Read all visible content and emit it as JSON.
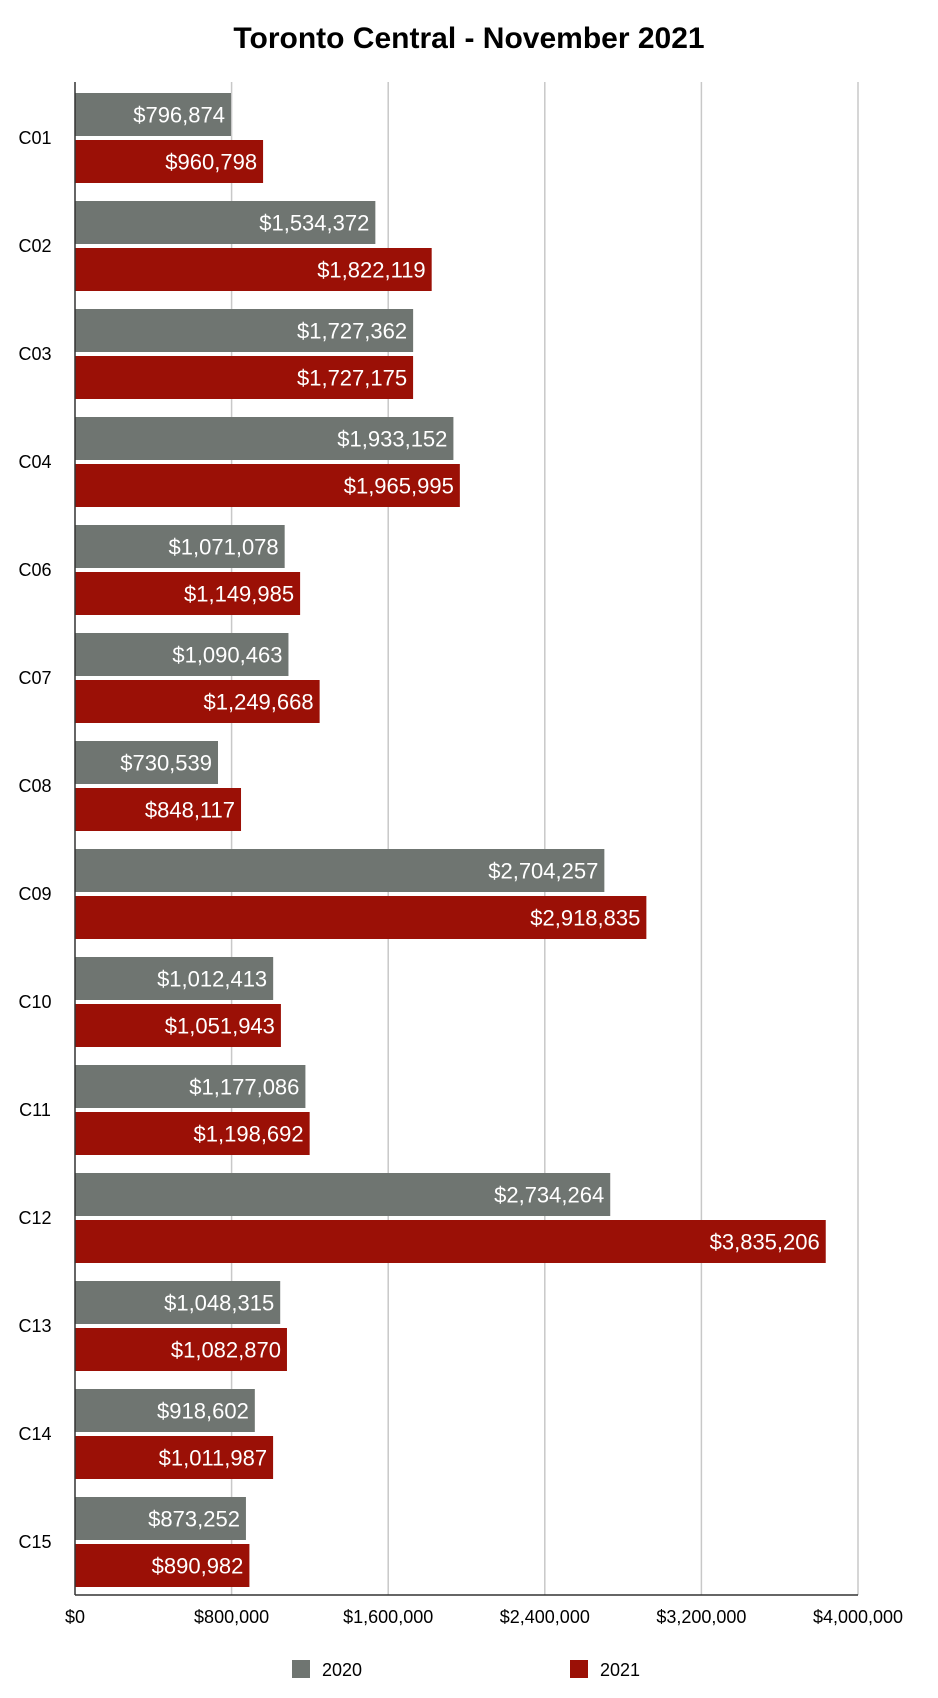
{
  "chart_data": {
    "type": "bar",
    "orientation": "horizontal",
    "title": "Toronto Central - November 2021",
    "categories": [
      "C01",
      "C02",
      "C03",
      "C04",
      "C06",
      "C07",
      "C08",
      "C09",
      "C10",
      "C11",
      "C12",
      "C13",
      "C14",
      "C15"
    ],
    "series": [
      {
        "name": "2020",
        "color": "#6f7571",
        "values": [
          796874,
          1534372,
          1727362,
          1933152,
          1071078,
          1090463,
          730539,
          2704257,
          1012413,
          1177086,
          2734264,
          1048315,
          918602,
          873252
        ],
        "labels": [
          "$796,874",
          "$1,534,372",
          "$1,727,362",
          "$1,933,152",
          "$1,071,078",
          "$1,090,463",
          "$730,539",
          "$2,704,257",
          "$1,012,413",
          "$1,177,086",
          "$2,734,264",
          "$1,048,315",
          "$918,602",
          "$873,252"
        ]
      },
      {
        "name": "2021",
        "color": "#9b1006",
        "values": [
          960798,
          1822119,
          1727175,
          1965995,
          1149985,
          1249668,
          848117,
          2918835,
          1051943,
          1198692,
          3835206,
          1082870,
          1011987,
          890982
        ],
        "labels": [
          "$960,798",
          "$1,822,119",
          "$1,727,175",
          "$1,965,995",
          "$1,149,985",
          "$1,249,668",
          "$848,117",
          "$2,918,835",
          "$1,051,943",
          "$1,198,692",
          "$3,835,206",
          "$1,082,870",
          "$1,011,987",
          "$890,982"
        ]
      }
    ],
    "xlim": [
      0,
      4000000
    ],
    "x_ticks": [
      0,
      800000,
      1600000,
      2400000,
      3200000,
      4000000
    ],
    "x_tick_labels": [
      "$0",
      "$800,000",
      "$1,600,000",
      "$2,400,000",
      "$3,200,000",
      "$4,000,000"
    ],
    "grid": true,
    "legend_position": "bottom"
  }
}
